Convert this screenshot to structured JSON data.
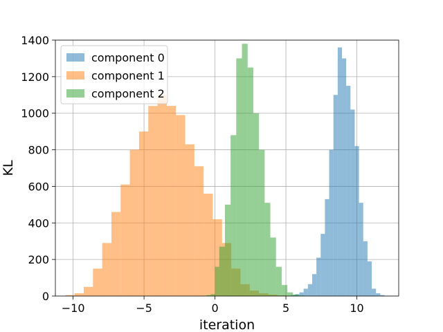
{
  "chart_data": {
    "type": "histogram",
    "title": "",
    "xlabel": "iteration",
    "ylabel": "KL",
    "xlim": [
      -11.25,
      12.95
    ],
    "ylim": [
      0,
      1400
    ],
    "xticks": [
      -10,
      -5,
      0,
      5,
      10
    ],
    "yticks": [
      0,
      200,
      400,
      600,
      800,
      1000,
      1200,
      1400
    ],
    "xtick_labels": [
      "−10",
      "−5",
      "0",
      "5",
      "10"
    ],
    "ytick_labels": [
      "0",
      "200",
      "400",
      "600",
      "800",
      "1000",
      "1200",
      "1400"
    ],
    "grid": true,
    "legend_position": "top-left",
    "series": [
      {
        "name": "component 0",
        "color": "#1f77b4",
        "opacity": 0.5,
        "bins": [
          {
            "x0": 5.35,
            "x1": 5.65,
            "count": 5
          },
          {
            "x0": 5.65,
            "x1": 5.95,
            "count": 10
          },
          {
            "x0": 5.95,
            "x1": 6.25,
            "count": 20
          },
          {
            "x0": 6.25,
            "x1": 6.55,
            "count": 40
          },
          {
            "x0": 6.55,
            "x1": 6.85,
            "count": 65
          },
          {
            "x0": 6.85,
            "x1": 7.15,
            "count": 120
          },
          {
            "x0": 7.15,
            "x1": 7.45,
            "count": 210
          },
          {
            "x0": 7.45,
            "x1": 7.75,
            "count": 340
          },
          {
            "x0": 7.75,
            "x1": 8.05,
            "count": 530
          },
          {
            "x0": 8.05,
            "x1": 8.35,
            "count": 800
          },
          {
            "x0": 8.35,
            "x1": 8.65,
            "count": 1100
          },
          {
            "x0": 8.65,
            "x1": 8.95,
            "count": 1360
          },
          {
            "x0": 8.95,
            "x1": 9.25,
            "count": 1300
          },
          {
            "x0": 9.25,
            "x1": 9.55,
            "count": 1150
          },
          {
            "x0": 9.55,
            "x1": 9.85,
            "count": 1020
          },
          {
            "x0": 9.85,
            "x1": 10.15,
            "count": 820
          },
          {
            "x0": 10.15,
            "x1": 10.45,
            "count": 510
          },
          {
            "x0": 10.45,
            "x1": 10.75,
            "count": 300
          },
          {
            "x0": 10.75,
            "x1": 11.05,
            "count": 190
          },
          {
            "x0": 11.05,
            "x1": 11.35,
            "count": 40
          },
          {
            "x0": 11.35,
            "x1": 11.65,
            "count": 15
          },
          {
            "x0": 11.65,
            "x1": 11.95,
            "count": 5
          }
        ]
      },
      {
        "name": "component 1",
        "color": "#ff7f0e",
        "opacity": 0.5,
        "bins": [
          {
            "x0": -10.55,
            "x1": -9.9,
            "count": 5
          },
          {
            "x0": -9.9,
            "x1": -9.25,
            "count": 15
          },
          {
            "x0": -9.25,
            "x1": -8.6,
            "count": 50
          },
          {
            "x0": -8.6,
            "x1": -7.95,
            "count": 150
          },
          {
            "x0": -7.95,
            "x1": -7.3,
            "count": 290
          },
          {
            "x0": -7.3,
            "x1": -6.65,
            "count": 460
          },
          {
            "x0": -6.65,
            "x1": -6.0,
            "count": 610
          },
          {
            "x0": -6.0,
            "x1": -5.35,
            "count": 800
          },
          {
            "x0": -5.35,
            "x1": -4.7,
            "count": 900
          },
          {
            "x0": -4.7,
            "x1": -4.05,
            "count": 1040
          },
          {
            "x0": -4.05,
            "x1": -3.4,
            "count": 1100
          },
          {
            "x0": -3.4,
            "x1": -2.75,
            "count": 1040
          },
          {
            "x0": -2.75,
            "x1": -2.1,
            "count": 990
          },
          {
            "x0": -2.1,
            "x1": -1.45,
            "count": 830
          },
          {
            "x0": -1.45,
            "x1": -0.8,
            "count": 710
          },
          {
            "x0": -0.8,
            "x1": -0.15,
            "count": 560
          },
          {
            "x0": -0.15,
            "x1": 0.5,
            "count": 420
          },
          {
            "x0": 0.5,
            "x1": 1.15,
            "count": 290
          },
          {
            "x0": 1.15,
            "x1": 1.8,
            "count": 150
          },
          {
            "x0": 1.8,
            "x1": 2.45,
            "count": 65
          },
          {
            "x0": 2.45,
            "x1": 3.1,
            "count": 30
          },
          {
            "x0": 3.1,
            "x1": 3.75,
            "count": 15
          },
          {
            "x0": 3.75,
            "x1": 4.4,
            "count": 8
          },
          {
            "x0": 4.4,
            "x1": 5.05,
            "count": 4
          }
        ]
      },
      {
        "name": "component 2",
        "color": "#2ca02c",
        "opacity": 0.5,
        "bins": [
          {
            "x0": -0.6,
            "x1": -0.3,
            "count": 5
          },
          {
            "x0": -0.3,
            "x1": 0.0,
            "count": 10
          },
          {
            "x0": 0.0,
            "x1": 0.3,
            "count": 160
          },
          {
            "x0": 0.3,
            "x1": 0.7,
            "count": 270
          },
          {
            "x0": 0.7,
            "x1": 1.1,
            "count": 500
          },
          {
            "x0": 1.1,
            "x1": 1.5,
            "count": 880
          },
          {
            "x0": 1.5,
            "x1": 1.9,
            "count": 1300
          },
          {
            "x0": 1.9,
            "x1": 2.3,
            "count": 1380
          },
          {
            "x0": 2.3,
            "x1": 2.7,
            "count": 1250
          },
          {
            "x0": 2.7,
            "x1": 3.1,
            "count": 1000
          },
          {
            "x0": 3.1,
            "x1": 3.5,
            "count": 800
          },
          {
            "x0": 3.5,
            "x1": 3.9,
            "count": 510
          },
          {
            "x0": 3.9,
            "x1": 4.3,
            "count": 320
          },
          {
            "x0": 4.3,
            "x1": 4.7,
            "count": 160
          },
          {
            "x0": 4.7,
            "x1": 5.1,
            "count": 60
          },
          {
            "x0": 5.1,
            "x1": 5.5,
            "count": 20
          },
          {
            "x0": 5.5,
            "x1": 5.9,
            "count": 8
          },
          {
            "x0": 5.9,
            "x1": 6.3,
            "count": 3
          }
        ]
      }
    ]
  }
}
